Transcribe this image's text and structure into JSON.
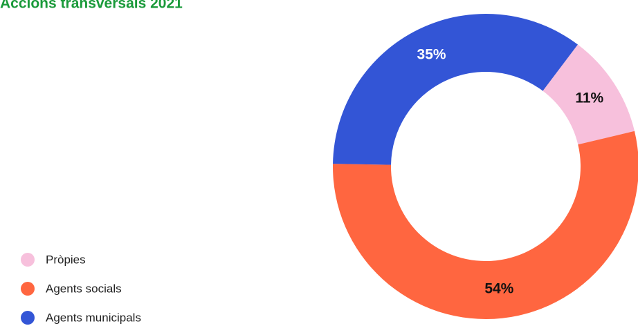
{
  "chart_data": {
    "type": "donut",
    "title": "Accions transversals 2021",
    "categories": [
      "Pròpies",
      "Agents socials",
      "Agents municipals"
    ],
    "values": [
      11,
      54,
      35
    ],
    "value_labels": [
      "11%",
      "54%",
      "35%"
    ],
    "colors": [
      "#f7c0dc",
      "#ff6640",
      "#3355d6"
    ],
    "label_colors": [
      "#111111",
      "#111111",
      "#ffffff"
    ],
    "legend": "bottom-left"
  }
}
